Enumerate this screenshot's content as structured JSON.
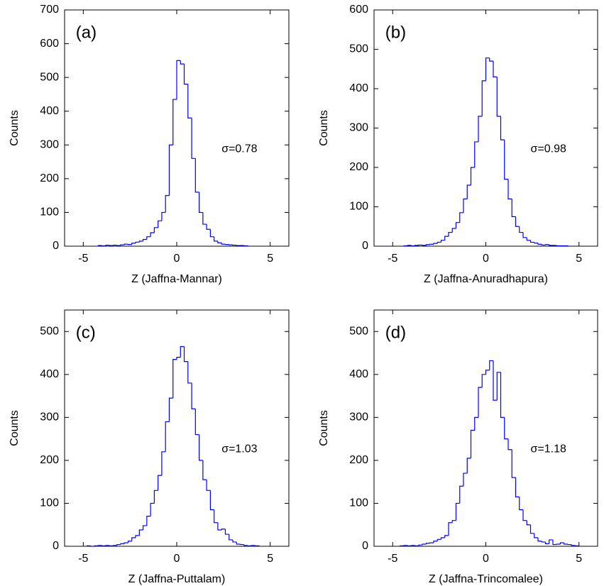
{
  "chart_data": [
    {
      "type": "histogram",
      "label": "(a)",
      "annotation": "σ=0.78",
      "xlabel": "Z (Jaffna-Mannar)",
      "ylabel": "Counts",
      "color": "#0000ff",
      "xlim": [
        -6,
        6
      ],
      "xticks": [
        -5,
        0,
        5
      ],
      "ylim": [
        0,
        700
      ],
      "yticks": [
        0,
        100,
        200,
        300,
        400,
        500,
        600,
        700
      ],
      "bins": [
        -4.2,
        -4.0,
        -3.8,
        -3.6,
        -3.4,
        -3.2,
        -3.0,
        -2.8,
        -2.6,
        -2.4,
        -2.2,
        -2.0,
        -1.8,
        -1.6,
        -1.4,
        -1.2,
        -1.0,
        -0.8,
        -0.6,
        -0.4,
        -0.2,
        0.0,
        0.2,
        0.4,
        0.6,
        0.8,
        1.0,
        1.2,
        1.4,
        1.6,
        1.8,
        2.0,
        2.2,
        2.4,
        2.6,
        2.8,
        3.0,
        3.2,
        3.4,
        3.6,
        3.8
      ],
      "values": [
        2,
        1,
        3,
        2,
        3,
        2,
        4,
        6,
        5,
        9,
        12,
        15,
        20,
        28,
        40,
        55,
        75,
        100,
        150,
        300,
        435,
        550,
        540,
        480,
        380,
        260,
        160,
        100,
        65,
        50,
        28,
        15,
        10,
        6,
        5,
        4,
        3,
        2,
        2,
        1
      ]
    },
    {
      "type": "histogram",
      "label": "(b)",
      "annotation": "σ=0.98",
      "xlabel": "Z (Jaffna-Anuradhapura)",
      "ylabel": "Counts",
      "color": "#0000ff",
      "xlim": [
        -6,
        6
      ],
      "xticks": [
        -5,
        0,
        5
      ],
      "ylim": [
        0,
        600
      ],
      "yticks": [
        0,
        100,
        200,
        300,
        400,
        500,
        600
      ],
      "bins": [
        -4.4,
        -4.2,
        -4.0,
        -3.8,
        -3.6,
        -3.4,
        -3.2,
        -3.0,
        -2.8,
        -2.6,
        -2.4,
        -2.2,
        -2.0,
        -1.8,
        -1.6,
        -1.4,
        -1.2,
        -1.0,
        -0.8,
        -0.6,
        -0.4,
        -0.2,
        0.0,
        0.2,
        0.4,
        0.6,
        0.8,
        1.0,
        1.2,
        1.4,
        1.6,
        1.8,
        2.0,
        2.2,
        2.4,
        2.6,
        2.8,
        3.0,
        3.2,
        3.4,
        3.6,
        3.8,
        4.0,
        4.2,
        4.4
      ],
      "values": [
        1,
        2,
        1,
        2,
        3,
        2,
        4,
        5,
        7,
        10,
        15,
        25,
        35,
        45,
        60,
        85,
        120,
        155,
        200,
        265,
        330,
        420,
        478,
        470,
        430,
        330,
        270,
        170,
        120,
        75,
        50,
        35,
        22,
        15,
        10,
        8,
        5,
        3,
        4,
        2,
        2,
        1,
        1,
        1
      ]
    },
    {
      "type": "histogram",
      "label": "(c)",
      "annotation": "σ=1.03",
      "xlabel": "Z (Jaffna-Puttalam)",
      "ylabel": "Counts",
      "color": "#0000ff",
      "xlim": [
        -6,
        6
      ],
      "xticks": [
        -5,
        0,
        5
      ],
      "ylim": [
        0,
        550
      ],
      "yticks": [
        0,
        100,
        200,
        300,
        400,
        500
      ],
      "bins": [
        -4.8,
        -4.6,
        -4.4,
        -4.2,
        -4.0,
        -3.8,
        -3.6,
        -3.4,
        -3.2,
        -3.0,
        -2.8,
        -2.6,
        -2.4,
        -2.2,
        -2.0,
        -1.8,
        -1.6,
        -1.4,
        -1.2,
        -1.0,
        -0.8,
        -0.6,
        -0.4,
        -0.2,
        0.0,
        0.2,
        0.4,
        0.6,
        0.8,
        1.0,
        1.2,
        1.4,
        1.6,
        1.8,
        2.0,
        2.2,
        2.4,
        2.6,
        2.8,
        3.0,
        3.2,
        3.4,
        3.6,
        3.8,
        4.0,
        4.2,
        4.4
      ],
      "values": [
        1,
        0,
        1,
        2,
        1,
        2,
        1,
        2,
        4,
        6,
        8,
        12,
        20,
        25,
        38,
        48,
        70,
        100,
        130,
        165,
        220,
        290,
        345,
        435,
        440,
        465,
        430,
        380,
        320,
        260,
        200,
        155,
        130,
        85,
        55,
        38,
        40,
        28,
        15,
        10,
        5,
        4,
        2,
        1,
        2,
        1
      ]
    },
    {
      "type": "histogram",
      "label": "(d)",
      "annotation": "σ=1.18",
      "xlabel": "Z (Jaffna-Trincomalee)",
      "ylabel": "Counts",
      "color": "#0000ff",
      "xlim": [
        -6,
        6
      ],
      "xticks": [
        -5,
        0,
        5
      ],
      "ylim": [
        0,
        550
      ],
      "yticks": [
        0,
        100,
        200,
        300,
        400,
        500
      ],
      "bins": [
        -4.6,
        -4.4,
        -4.2,
        -4.0,
        -3.8,
        -3.6,
        -3.4,
        -3.2,
        -3.0,
        -2.8,
        -2.6,
        -2.4,
        -2.2,
        -2.0,
        -1.8,
        -1.6,
        -1.4,
        -1.2,
        -1.0,
        -0.8,
        -0.6,
        -0.4,
        -0.2,
        0.0,
        0.2,
        0.4,
        0.6,
        0.8,
        1.0,
        1.2,
        1.4,
        1.6,
        1.8,
        2.0,
        2.2,
        2.4,
        2.6,
        2.8,
        3.0,
        3.2,
        3.4,
        3.6,
        3.8,
        4.0,
        4.2,
        4.4,
        4.6,
        4.8,
        5.0
      ],
      "values": [
        1,
        2,
        1,
        2,
        1,
        3,
        5,
        7,
        8,
        12,
        16,
        20,
        25,
        55,
        60,
        100,
        140,
        170,
        205,
        270,
        300,
        370,
        400,
        410,
        432,
        340,
        405,
        300,
        250,
        225,
        160,
        115,
        85,
        60,
        50,
        30,
        20,
        12,
        10,
        6,
        15,
        4,
        5,
        8,
        5,
        4,
        2,
        1
      ]
    }
  ]
}
